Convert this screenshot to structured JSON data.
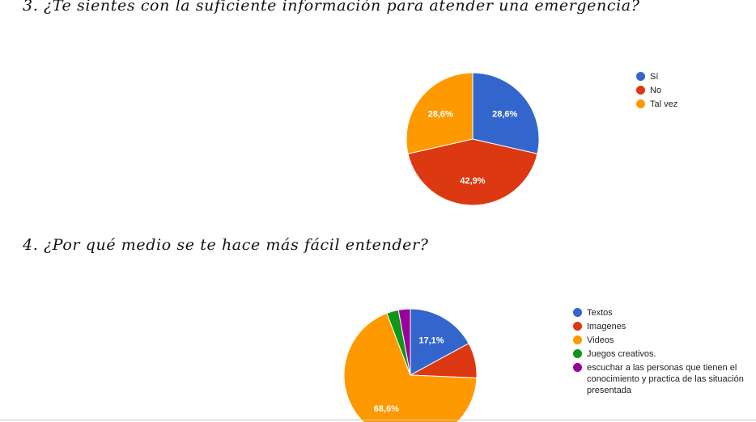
{
  "questions": {
    "q3": "3. ¿Te sientes con la suficiente información para atender una emergencia?",
    "q4": "4. ¿Por qué medio se te hace más fácil entender?"
  },
  "chart_data": [
    {
      "type": "pie",
      "title": "3. ¿Te sientes con la suficiente información para atender una emergencia?",
      "legend_position": "right",
      "slices": [
        {
          "label": "Sí",
          "value": 28.6,
          "value_label": "28,6%",
          "color": "#3366cc"
        },
        {
          "label": "No",
          "value": 42.9,
          "value_label": "42,9%",
          "color": "#dc3912"
        },
        {
          "label": "Tal vez",
          "value": 28.6,
          "value_label": "28,6%",
          "color": "#ff9900"
        }
      ]
    },
    {
      "type": "pie",
      "title": "4. ¿Por qué medio se te hace más fácil entender?",
      "legend_position": "right",
      "slices": [
        {
          "label": "Textos",
          "value": 17.1,
          "value_label": "17,1%",
          "color": "#3366cc"
        },
        {
          "label": "Imagenes",
          "value": 8.6,
          "value_label": "",
          "color": "#dc3912"
        },
        {
          "label": "Videos",
          "value": 68.6,
          "value_label": "68,6%",
          "color": "#ff9900"
        },
        {
          "label": "Juegos creativos.",
          "value": 2.9,
          "value_label": "",
          "color": "#109618"
        },
        {
          "label": "escuchar a las personas que tienen el conocimiento y practica de las situación presentada",
          "value": 2.9,
          "value_label": "",
          "color": "#990099"
        }
      ]
    }
  ]
}
